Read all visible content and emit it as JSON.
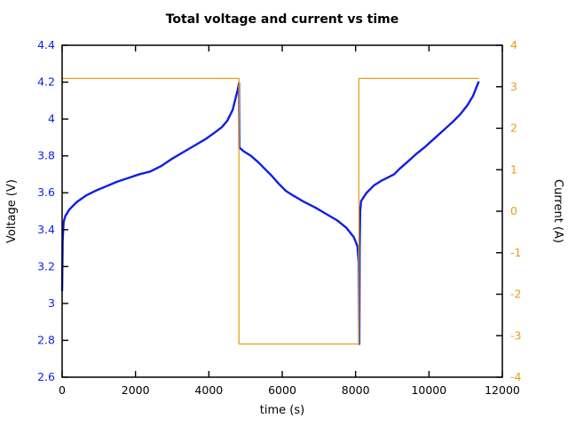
{
  "title": "Total voltage and current vs time",
  "colors": {
    "voltage_blue": "#0f1fe4",
    "current_orange": "#e6a117",
    "axis_black": "#000000",
    "background": "#ffffff"
  },
  "chart_data": {
    "type": "line",
    "title": "Total voltage and current vs time",
    "xlabel": "time (s)",
    "ylabel_left": "Voltage (V)",
    "ylabel_right": "Current (A)",
    "xlim": [
      0,
      12000
    ],
    "ylim_left": [
      2.6,
      4.4
    ],
    "ylim_right": [
      -4,
      4
    ],
    "xticks": [
      0,
      2000,
      4000,
      6000,
      8000,
      10000,
      12000
    ],
    "yticks_left": [
      2.6,
      2.8,
      3,
      3.2,
      3.4,
      3.6,
      3.8,
      4,
      4.2,
      4.4
    ],
    "yticks_right": [
      -4,
      -3,
      -2,
      -1,
      0,
      1,
      2,
      3,
      4
    ],
    "grid": false,
    "legend": "none",
    "ticks_mirrored": true,
    "series": [
      {
        "name": "voltage",
        "axis": "left",
        "color": "#0f1fe4",
        "width": 2.4,
        "points": [
          [
            0,
            3.07
          ],
          [
            15,
            3.34
          ],
          [
            40,
            3.44
          ],
          [
            90,
            3.475
          ],
          [
            200,
            3.51
          ],
          [
            400,
            3.55
          ],
          [
            650,
            3.585
          ],
          [
            900,
            3.61
          ],
          [
            1200,
            3.635
          ],
          [
            1500,
            3.66
          ],
          [
            1800,
            3.68
          ],
          [
            2100,
            3.7
          ],
          [
            2400,
            3.715
          ],
          [
            2700,
            3.745
          ],
          [
            3000,
            3.785
          ],
          [
            3300,
            3.82
          ],
          [
            3600,
            3.855
          ],
          [
            3900,
            3.89
          ],
          [
            4150,
            3.925
          ],
          [
            4350,
            3.955
          ],
          [
            4500,
            3.99
          ],
          [
            4650,
            4.05
          ],
          [
            4750,
            4.13
          ],
          [
            4800,
            4.17
          ],
          [
            4820,
            4.195
          ],
          [
            4830,
            3.845
          ],
          [
            4950,
            3.825
          ],
          [
            5150,
            3.8
          ],
          [
            5350,
            3.765
          ],
          [
            5500,
            3.735
          ],
          [
            5700,
            3.695
          ],
          [
            5900,
            3.65
          ],
          [
            6100,
            3.61
          ],
          [
            6300,
            3.585
          ],
          [
            6600,
            3.55
          ],
          [
            6900,
            3.52
          ],
          [
            7200,
            3.485
          ],
          [
            7500,
            3.45
          ],
          [
            7750,
            3.41
          ],
          [
            7950,
            3.36
          ],
          [
            8050,
            3.31
          ],
          [
            8085,
            3.22
          ],
          [
            8100,
            2.78
          ],
          [
            8110,
            3.3
          ],
          [
            8125,
            3.5
          ],
          [
            8150,
            3.555
          ],
          [
            8300,
            3.6
          ],
          [
            8500,
            3.64
          ],
          [
            8700,
            3.665
          ],
          [
            8900,
            3.685
          ],
          [
            9050,
            3.7
          ],
          [
            9200,
            3.73
          ],
          [
            9400,
            3.765
          ],
          [
            9650,
            3.81
          ],
          [
            9900,
            3.85
          ],
          [
            10150,
            3.895
          ],
          [
            10400,
            3.94
          ],
          [
            10650,
            3.985
          ],
          [
            10850,
            4.025
          ],
          [
            11050,
            4.075
          ],
          [
            11200,
            4.125
          ],
          [
            11300,
            4.175
          ],
          [
            11350,
            4.2
          ]
        ]
      },
      {
        "name": "current",
        "axis": "right",
        "color": "#e6a117",
        "width": 1.3,
        "points": [
          [
            0,
            3.2
          ],
          [
            4820,
            3.2
          ],
          [
            4820,
            -3.2
          ],
          [
            8090,
            -3.2
          ],
          [
            8090,
            3.2
          ],
          [
            11350,
            3.2
          ]
        ]
      }
    ]
  }
}
